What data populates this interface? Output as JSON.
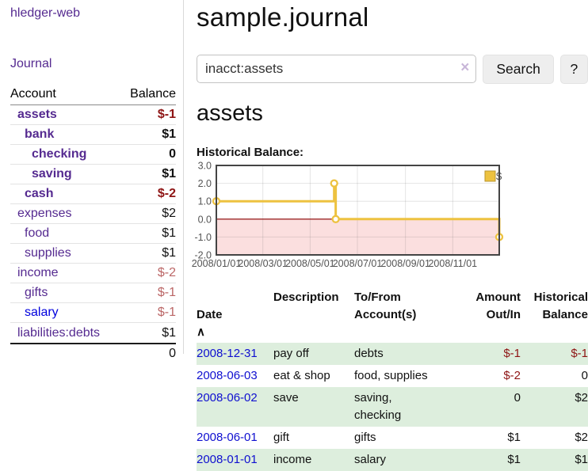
{
  "colors": {
    "link_purple": "#552a90",
    "link_blue": "#0000dd",
    "negative_strong": "#8e1414",
    "negative_soft": "#bb6666",
    "row_green": "#ddeedd",
    "chart_gold": "#edc240",
    "zero_line_red": "#8b0000",
    "negative_region_pink": "#fbdfdf"
  },
  "icons": {
    "sort_asc": "∧",
    "clear": "×"
  },
  "brand": "hledger-web",
  "nav": {
    "journal": "Journal"
  },
  "sidebar": {
    "header": {
      "account": "Account",
      "balance": "Balance"
    },
    "accounts": [
      {
        "name": "assets",
        "balance": "$-1"
      },
      {
        "name": "bank",
        "balance": "$1"
      },
      {
        "name": "checking",
        "balance": "0"
      },
      {
        "name": "saving",
        "balance": "$1"
      },
      {
        "name": "cash",
        "balance": "$-2"
      },
      {
        "name": "expenses",
        "balance": "$2"
      },
      {
        "name": "food",
        "balance": "$1"
      },
      {
        "name": "supplies",
        "balance": "$1"
      },
      {
        "name": "income",
        "balance": "$-2"
      },
      {
        "name": "gifts",
        "balance": "$-1"
      },
      {
        "name": "salary",
        "balance": "$-1"
      },
      {
        "name": "liabilities:debts",
        "balance": "$1"
      }
    ],
    "total": "0"
  },
  "main": {
    "title": "sample.journal",
    "search": {
      "value": "inacct:assets",
      "search_button": "Search",
      "help_button": "?"
    },
    "heading": "assets",
    "chart_label": "Historical Balance:"
  },
  "chart_data": {
    "type": "line",
    "step": true,
    "title": "Historical Balance",
    "series": [
      {
        "name": "$",
        "color": "#edc240",
        "points": [
          [
            "2008-01-01",
            1
          ],
          [
            "2008-06-01",
            2
          ],
          [
            "2008-06-03",
            0
          ],
          [
            "2008-12-31",
            -1
          ]
        ]
      }
    ],
    "x_range": [
      "2008-01-01",
      "2008-12-31"
    ],
    "x_ticks": [
      "2008/01/01",
      "2008/03/01",
      "2008/05/01",
      "2008/07/01",
      "2008/09/01",
      "2008/11/01"
    ],
    "y_ticks": [
      "3.0",
      "2.0",
      "1.0",
      "0.0",
      "-1.0",
      "-2.0"
    ],
    "ylim": [
      -2,
      3
    ],
    "grid": true,
    "legend_position": "top-right",
    "negative_region_color": "#fbdfdf",
    "zero_line_color": "#8b0000"
  },
  "register": {
    "headers": {
      "date": "Date",
      "description": "Description",
      "to_from": "To/From\nAccount(s)",
      "amount": "Amount\nOut/In",
      "balance": "Historical\nBalance"
    },
    "rows": [
      {
        "date": "2008-12-31",
        "description": "pay off",
        "to_from": "debts",
        "amount": "$-1",
        "balance": "$-1"
      },
      {
        "date": "2008-06-03",
        "description": "eat & shop",
        "to_from": "food, supplies",
        "amount": "$-2",
        "balance": "0"
      },
      {
        "date": "2008-06-02",
        "description": "save",
        "to_from": "saving,\nchecking",
        "amount": "0",
        "balance": "$2"
      },
      {
        "date": "2008-06-01",
        "description": "gift",
        "to_from": "gifts",
        "amount": "$1",
        "balance": "$2"
      },
      {
        "date": "2008-01-01",
        "description": "income",
        "to_from": "salary",
        "amount": "$1",
        "balance": "$1"
      }
    ]
  }
}
